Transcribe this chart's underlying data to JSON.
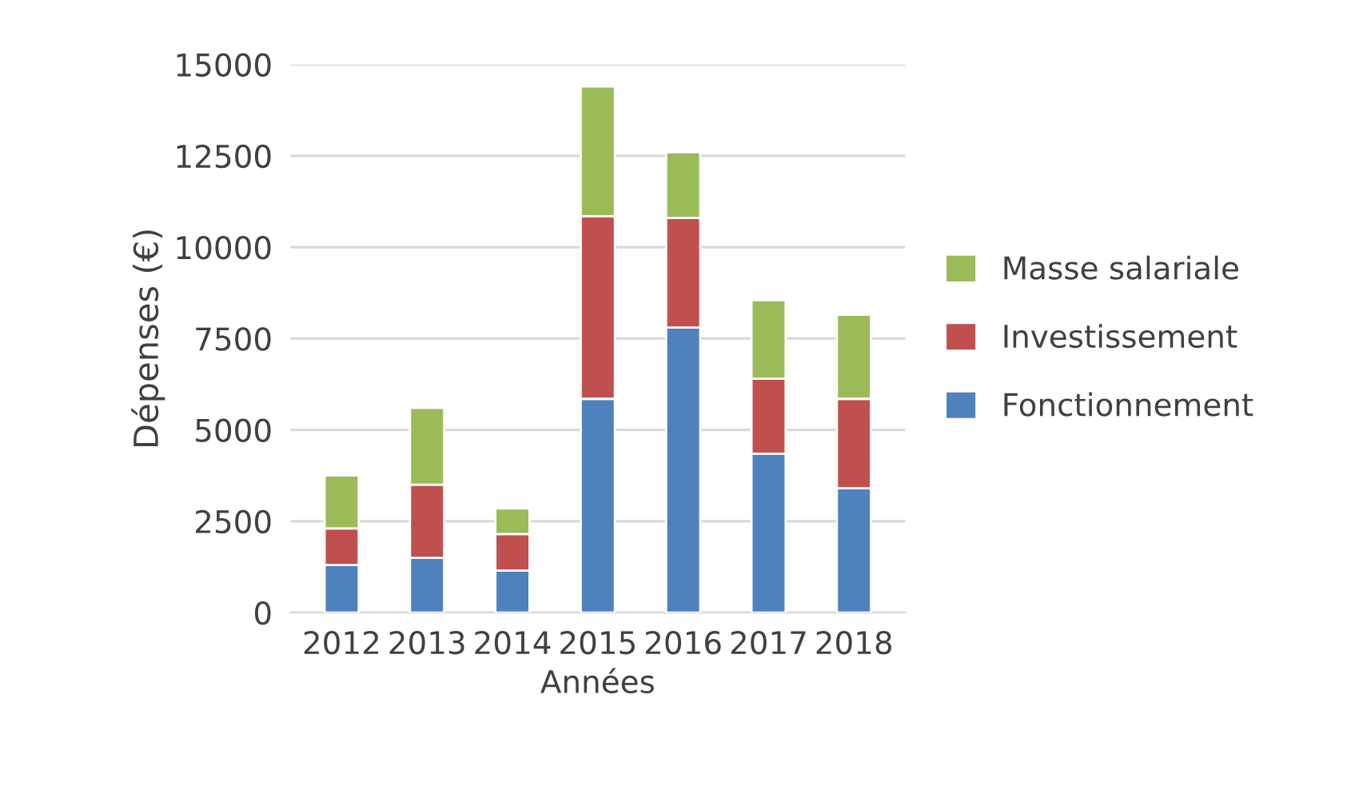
{
  "chart_data": {
    "type": "bar",
    "stacked": true,
    "xlabel": "Années",
    "ylabel": "Dépenses (€)",
    "categories": [
      "2012",
      "2013",
      "2014",
      "2015",
      "2016",
      "2017",
      "2018"
    ],
    "series": [
      {
        "name": "Fonctionnement",
        "color": "#4f81bd",
        "values": [
          1300,
          1500,
          1150,
          5850,
          7800,
          4350,
          3400
        ]
      },
      {
        "name": "Investissement",
        "color": "#c0504d",
        "values": [
          1000,
          2000,
          1000,
          5000,
          3000,
          2050,
          2450
        ]
      },
      {
        "name": "Masse salariale",
        "color": "#9bbb59",
        "values": [
          1450,
          2100,
          700,
          3550,
          1800,
          2150,
          2300
        ]
      }
    ],
    "ylim": [
      0,
      15000
    ],
    "yticks": [
      0,
      2500,
      5000,
      7500,
      10000,
      12500,
      15000
    ],
    "grid": "y",
    "legend": "right"
  }
}
